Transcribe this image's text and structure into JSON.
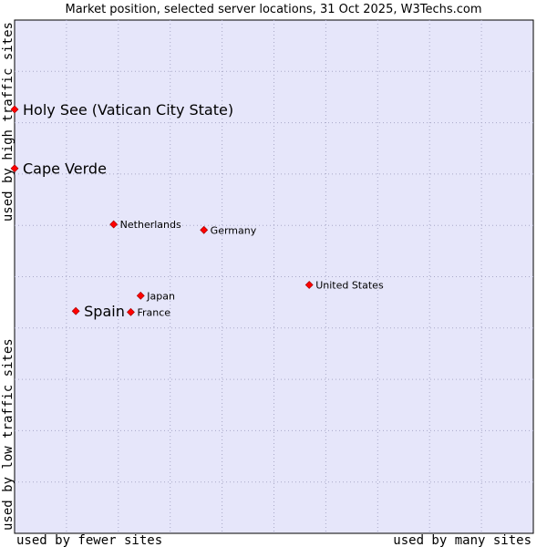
{
  "chart_data": {
    "type": "scatter",
    "title": "Market position, selected server locations, 31 Oct 2025, W3Techs.com",
    "xlabel_low": "used by fewer sites",
    "xlabel_high": "used by many sites",
    "ylabel_low": "used by low traffic sites",
    "ylabel_high": "used by high traffic sites",
    "xlim": [
      0,
      100
    ],
    "ylim": [
      0,
      100
    ],
    "grid": true,
    "colors": {
      "plot_bg": "#e6e6fa",
      "grid": "#a9a9c8",
      "point": "#ff0000",
      "point_edge": "#990000"
    },
    "points": [
      {
        "name": "Holy See (Vatican City State)",
        "x": 0.0,
        "y": 82.6,
        "size": "large"
      },
      {
        "name": "Cape Verde",
        "x": 0.0,
        "y": 71.1,
        "size": "large"
      },
      {
        "name": "Netherlands",
        "x": 19.1,
        "y": 60.2,
        "size": "small"
      },
      {
        "name": "Germany",
        "x": 36.5,
        "y": 59.1,
        "size": "small"
      },
      {
        "name": "United States",
        "x": 56.8,
        "y": 48.4,
        "size": "small"
      },
      {
        "name": "Japan",
        "x": 24.3,
        "y": 46.3,
        "size": "small"
      },
      {
        "name": "Spain",
        "x": 11.8,
        "y": 43.3,
        "size": "large"
      },
      {
        "name": "France",
        "x": 22.4,
        "y": 43.1,
        "size": "small"
      }
    ]
  }
}
